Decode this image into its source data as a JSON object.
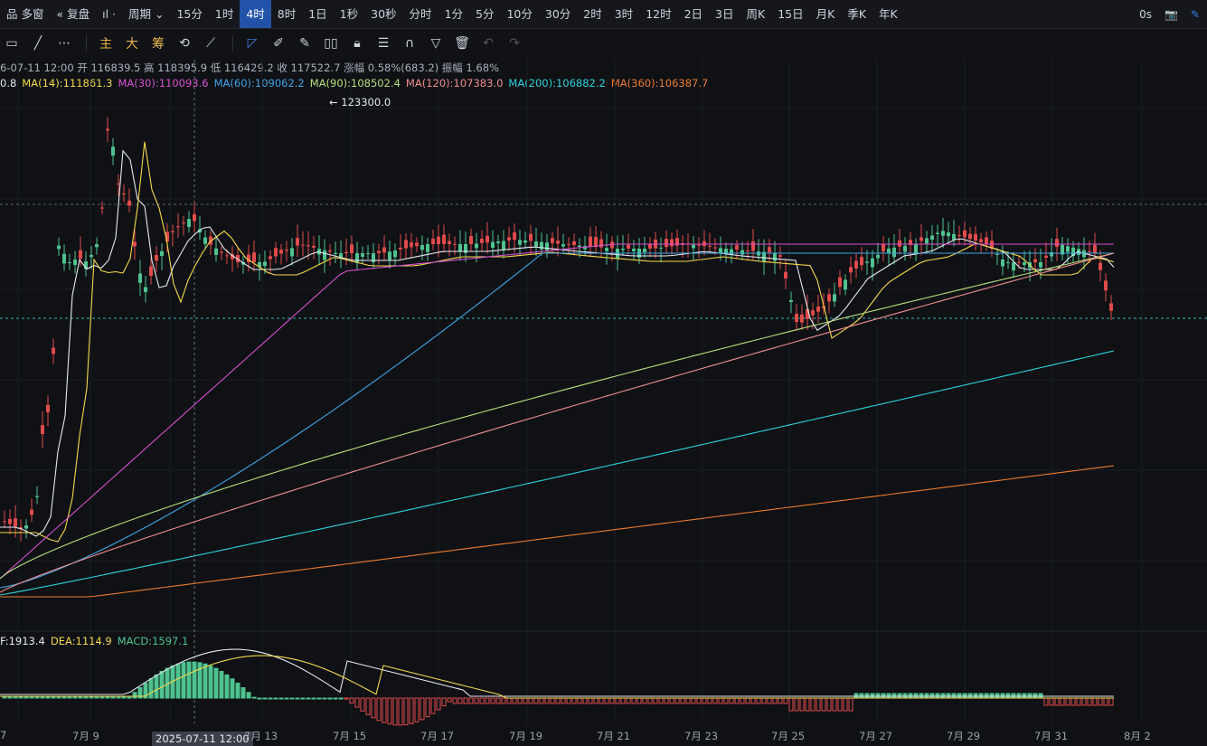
{
  "topbar": {
    "left": [
      "品 多窗",
      "« 复盘",
      "ıl ·",
      "周期 ⌄",
      "15分",
      "1时",
      "4时",
      "8时",
      "1日",
      "1秒",
      "30秒",
      "分时",
      "1分",
      "5分",
      "10分",
      "30分",
      "2时",
      "3时",
      "12时",
      "2日",
      "3日",
      "周K",
      "15日",
      "月K",
      "季K",
      "年K"
    ],
    "active_index": 6,
    "right_timer": "0s"
  },
  "toolbar": {
    "main": "主",
    "big": "大",
    "chip": "筹"
  },
  "info": {
    "row1": "6-07-11 12:00 开 116839.5 高 118395.9 低 116429.2 收 117522.7 涨幅 0.58%(683.2) 振幅 1.68%",
    "ma_prefix": "0.8",
    "ma": [
      {
        "label": "MA(14):111861.3",
        "color": "#f5d94a"
      },
      {
        "label": "MA(30):110093.6",
        "color": "#d84fd1"
      },
      {
        "label": "MA(60):109062.2",
        "color": "#3fa6e8"
      },
      {
        "label": "MA(90):108502.4",
        "color": "#b8e07a"
      },
      {
        "label": "MA(120):107383.0",
        "color": "#f08d8d"
      },
      {
        "label": "MA(200):106882.2",
        "color": "#2ed3dc"
      },
      {
        "label": "MA(360):106387.7",
        "color": "#f07a2a"
      }
    ],
    "macd": [
      {
        "label": "F:1913.4",
        "color": "#e6e9ef"
      },
      {
        "label": "DEA:1114.9",
        "color": "#f5d94a"
      },
      {
        "label": "MACD:1597.1",
        "color": "#4ec38f"
      }
    ]
  },
  "max_label": "← 123300.0",
  "x_axis": [
    "7",
    "7月 9",
    "2025-07-11 12:00",
    "7月 13",
    "7月 15",
    "7月 17",
    "7月 19",
    "7月 21",
    "7月 23",
    "7月 25",
    "7月 27",
    "7月 29",
    "7月 31",
    "8月 2"
  ],
  "colors": {
    "up": "#4ec38f",
    "down": "#e04b4b",
    "bg": "#0f1115",
    "active": "#2253a8"
  }
}
